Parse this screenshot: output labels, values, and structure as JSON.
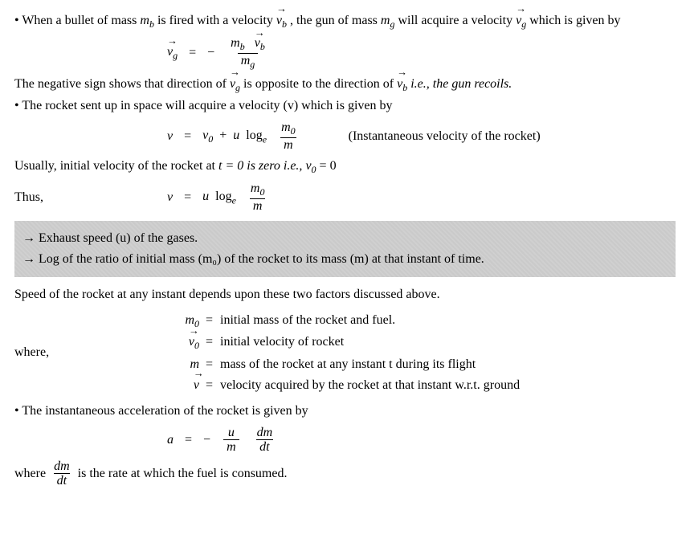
{
  "p1a": "• When a bullet of mass ",
  "p1b": " is fired with a velocity ",
  "p1c": ", the gun of mass ",
  "p1d": " will acquire a velocity ",
  "p1e": " which is given by",
  "sym": {
    "mb": "m",
    "mb_sub": "b",
    "vb": "v",
    "vb_sub": "b",
    "mg": "m",
    "mg_sub": "g",
    "vg": "v",
    "vg_sub": "g",
    "v": "v",
    "v0": "v",
    "v0_sub": "0",
    "u": "u",
    "m": "m",
    "m0": "m",
    "m0_sub": "0",
    "a": "a",
    "t": "t",
    "dm": "dm",
    "dt": "dt",
    "loge": "log",
    "loge_sub": "e",
    "minus": "−",
    "eq": "="
  },
  "p2a": "The negative sign shows that direction of ",
  "p2b": " is opposite to the direction of ",
  "p2c": " i.e., the gun recoils.",
  "p3": "• The rocket sent up in space will acquire a velocity (v) which is given by",
  "eq_note": "(Instantaneous velocity of the rocket)",
  "p4a": "Usually, initial velocity of the rocket at ",
  "p4b": " = 0 is zero i.e., ",
  "p4c": " = 0",
  "p5": "Thus,",
  "hl1": "→ Exhaust speed (u) of the gases.",
  "hl2": "→ Log of the ratio of initial mass (m₀) of the rocket to its mass (m) at that instant of time.",
  "p6": "Speed of the rocket at any instant depends upon these two factors discussed above.",
  "p7": "where,",
  "def1": "initial mass of the rocket and fuel.",
  "def2": "initial velocity of rocket",
  "def3": "mass of the rocket at any instant t during its flight",
  "def4": "velocity acquired by the rocket at that instant w.r.t. ground",
  "p8": "• The instantaneous acceleration of the rocket is given by",
  "p9a": "where ",
  "p9b": " is the rate at which the fuel is consumed."
}
